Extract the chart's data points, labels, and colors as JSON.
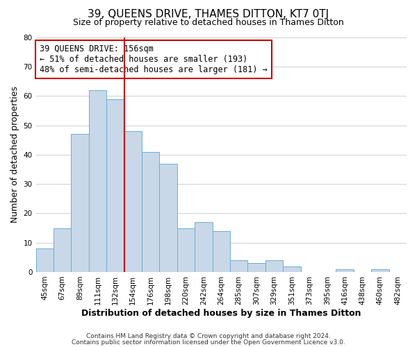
{
  "title": "39, QUEENS DRIVE, THAMES DITTON, KT7 0TJ",
  "subtitle": "Size of property relative to detached houses in Thames Ditton",
  "xlabel": "Distribution of detached houses by size in Thames Ditton",
  "ylabel": "Number of detached properties",
  "bar_color": "#c8d8e8",
  "bar_edge_color": "#6baed6",
  "categories": [
    "45sqm",
    "67sqm",
    "89sqm",
    "111sqm",
    "132sqm",
    "154sqm",
    "176sqm",
    "198sqm",
    "220sqm",
    "242sqm",
    "264sqm",
    "285sqm",
    "307sqm",
    "329sqm",
    "351sqm",
    "373sqm",
    "395sqm",
    "416sqm",
    "438sqm",
    "460sqm",
    "482sqm"
  ],
  "values": [
    8,
    15,
    47,
    62,
    59,
    48,
    41,
    37,
    15,
    17,
    14,
    4,
    3,
    4,
    2,
    0,
    0,
    1,
    0,
    1,
    0
  ],
  "vline_color": "#cc0000",
  "ylim": [
    0,
    80
  ],
  "yticks": [
    0,
    10,
    20,
    30,
    40,
    50,
    60,
    70,
    80
  ],
  "annotation_line1": "39 QUEENS DRIVE: 156sqm",
  "annotation_line2": "← 51% of detached houses are smaller (193)",
  "annotation_line3": "48% of semi-detached houses are larger (181) →",
  "footnote1": "Contains HM Land Registry data © Crown copyright and database right 2024.",
  "footnote2": "Contains public sector information licensed under the Open Government Licence v3.0.",
  "grid_color": "#d0d0d0",
  "title_fontsize": 11,
  "subtitle_fontsize": 9,
  "axis_label_fontsize": 9,
  "tick_fontsize": 7.5,
  "annotation_fontsize": 8.5,
  "footnote_fontsize": 6.5
}
